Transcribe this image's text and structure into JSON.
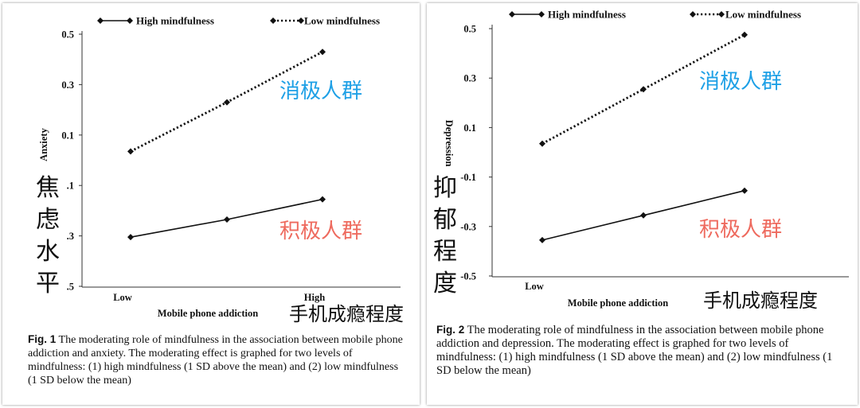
{
  "chart_data": [
    {
      "type": "line",
      "figure_label": "Fig. 1",
      "caption_text": "The moderating role of mindfulness in the association between mobile phone addiction and anxiety. The moderating effect is graphed for two levels of mindfulness: (1) high mindfulness (1 SD above the mean) and (2) low mindfulness (1 SD below the mean)",
      "xlabel": "Mobile phone addiction",
      "ylabel": "Anxiety",
      "x": [
        0,
        1,
        2
      ],
      "xtick_labels": [
        "Low",
        "",
        "High"
      ],
      "ylim": [
        -0.5,
        0.5
      ],
      "yticks": [
        0.5,
        0.3,
        0.1,
        -0.1,
        -0.3,
        -0.5
      ],
      "ytick_labels": [
        "0.5",
        "0.3",
        "0.1",
        ".1",
        ".3",
        ".5"
      ],
      "legend": "top",
      "grid": false,
      "series": [
        {
          "name": "High mindfulness",
          "style": "solid",
          "values": [
            -0.305,
            -0.235,
            -0.155
          ]
        },
        {
          "name": "Low mindfulness",
          "style": "dotted",
          "values": [
            0.035,
            0.23,
            0.43
          ]
        }
      ],
      "annotations": {
        "negative_group": "消极人群",
        "positive_group": "积极人群",
        "x_axis_cn": "手机成瘾程度",
        "y_axis_cn": [
          "焦",
          "虑",
          "水",
          "平"
        ]
      }
    },
    {
      "type": "line",
      "figure_label": "Fig. 2",
      "caption_text": "The moderating role of mindfulness in the association between mobile phone addiction and depression. The moderating effect is graphed for two levels of mindfulness: (1) high mindfulness (1 SD above the mean) and (2) low mindfulness (1 SD below the mean)",
      "xlabel": "Mobile phone addiction",
      "ylabel": "Depression",
      "x": [
        0,
        1,
        2
      ],
      "xtick_labels": [
        "Low",
        "",
        ""
      ],
      "ylim": [
        -0.5,
        0.5
      ],
      "yticks": [
        0.5,
        0.3,
        0.1,
        -0.1,
        -0.3,
        -0.5
      ],
      "ytick_labels": [
        "0.5",
        "0.3",
        "0.1",
        "-0.1",
        "-0.3",
        "-0.5"
      ],
      "legend": "top",
      "grid": false,
      "series": [
        {
          "name": "High mindfulness",
          "style": "solid",
          "values": [
            -0.355,
            -0.255,
            -0.155
          ]
        },
        {
          "name": "Low mindfulness",
          "style": "dotted",
          "values": [
            0.035,
            0.255,
            0.475
          ]
        }
      ],
      "annotations": {
        "negative_group": "消极人群",
        "positive_group": "积极人群",
        "x_axis_cn": "手机成瘾程度",
        "y_axis_cn": [
          "抑",
          "郁",
          "程",
          "度"
        ]
      }
    }
  ]
}
